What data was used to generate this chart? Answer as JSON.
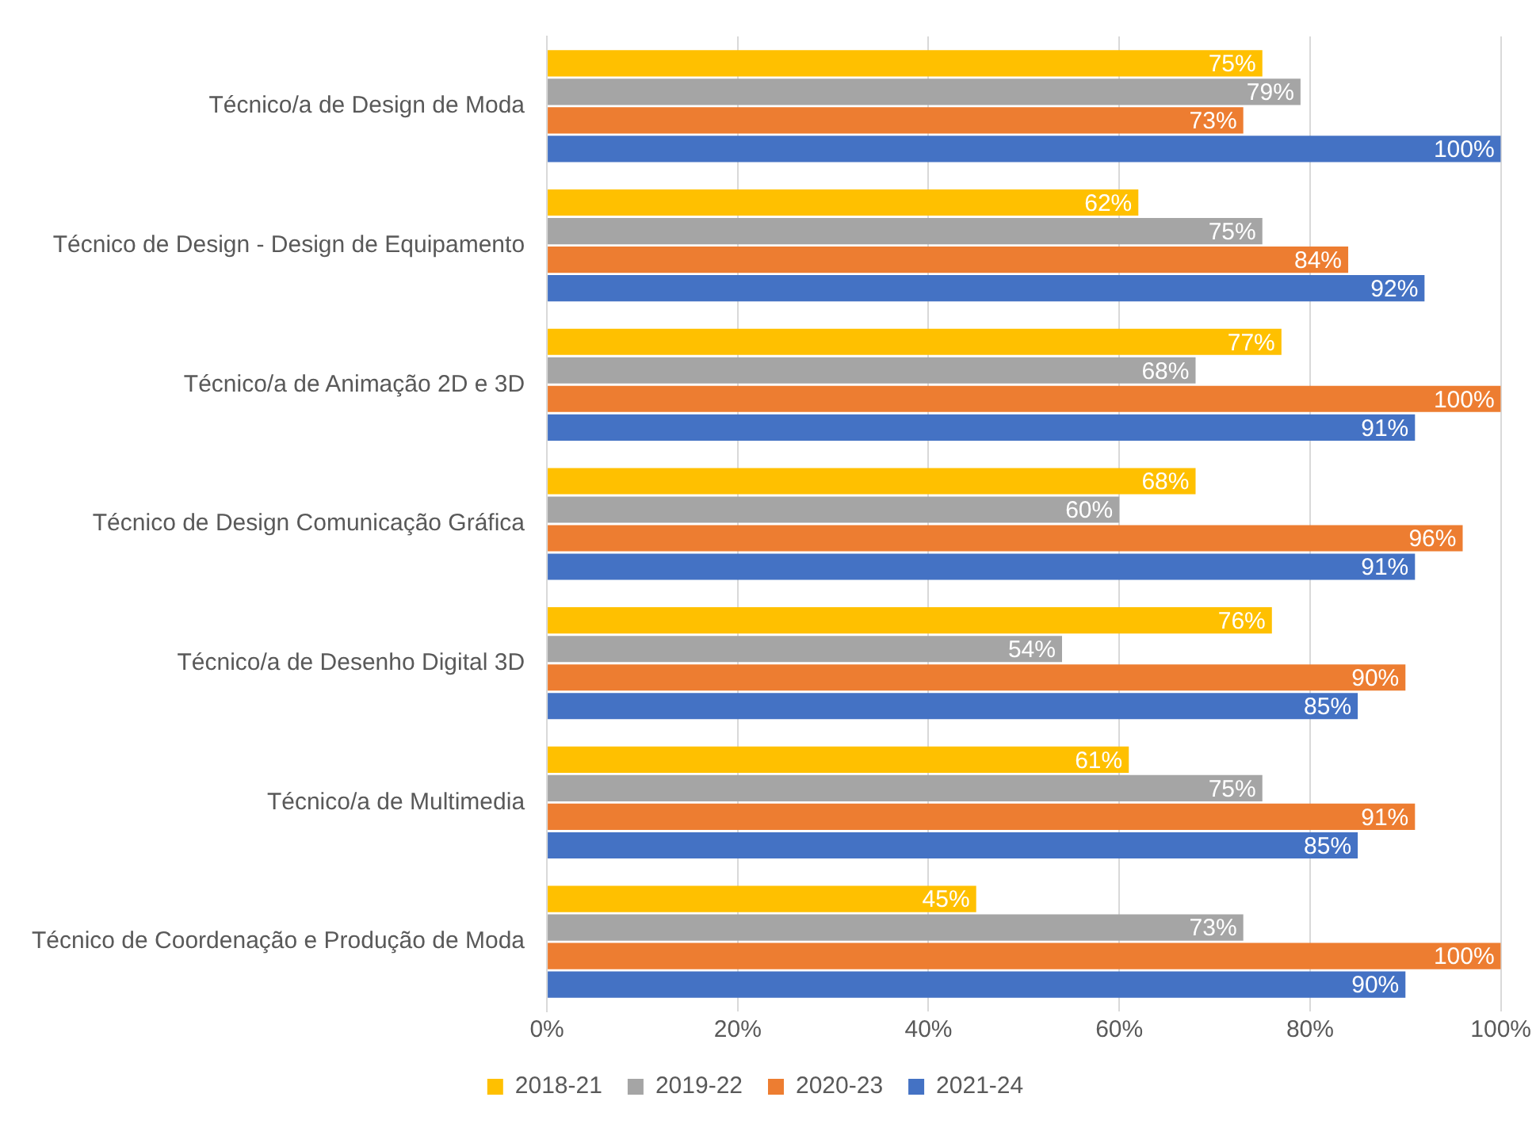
{
  "chart_data": {
    "type": "bar",
    "orientation": "horizontal",
    "categories": [
      "Técnico/a de Design de Moda",
      "Técnico de Design - Design de Equipamento",
      "Técnico/a de Animação 2D e 3D",
      "Técnico de Design Comunicação Gráfica",
      "Técnico/a de Desenho Digital 3D",
      "Técnico/a de Multimedia",
      "Técnico de Coordenação e Produção de Moda"
    ],
    "series": [
      {
        "name": "2018-21",
        "color": "#ffc000",
        "values": [
          75,
          62,
          77,
          68,
          76,
          61,
          45
        ],
        "value_labels": [
          "75%",
          "62%",
          "77%",
          "68%",
          "76%",
          "61%",
          "45%"
        ]
      },
      {
        "name": "2019-22",
        "color": "#a5a5a5",
        "values": [
          79,
          75,
          68,
          60,
          54,
          75,
          73
        ],
        "value_labels": [
          "79%",
          "75%",
          "68%",
          "60%",
          "54%",
          "75%",
          "73%"
        ]
      },
      {
        "name": "2020-23",
        "color": "#ed7d31",
        "values": [
          73,
          84,
          100,
          96,
          90,
          91,
          100
        ],
        "value_labels": [
          "73%",
          "84%",
          "100%",
          "96%",
          "90%",
          "91%",
          "100%"
        ]
      },
      {
        "name": "2021-24",
        "color": "#4472c4",
        "values": [
          100,
          92,
          91,
          91,
          85,
          85,
          90
        ],
        "value_labels": [
          "100%",
          "92%",
          "91%",
          "91%",
          "85%",
          "85%",
          "90%"
        ]
      }
    ],
    "xlim": [
      0,
      100
    ],
    "xticks": [
      {
        "value": 0,
        "label": "0%"
      },
      {
        "value": 20,
        "label": "20%"
      },
      {
        "value": 40,
        "label": "40%"
      },
      {
        "value": 60,
        "label": "60%"
      },
      {
        "value": 80,
        "label": "80%"
      },
      {
        "value": 100,
        "label": "100%"
      }
    ],
    "grid": "x",
    "legend": "bottom"
  }
}
